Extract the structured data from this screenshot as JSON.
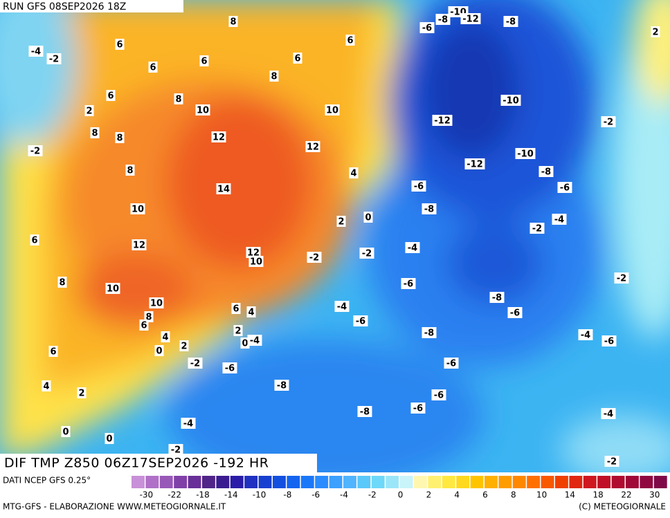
{
  "header": {
    "run": "RUN GFS 08SEP2026 18Z"
  },
  "map": {
    "title": "DIF TMP Z850 06Z17SEP2026 -192 HR",
    "contour_labels": [
      8,
      6,
      -4,
      -2,
      6,
      6,
      6,
      6,
      8,
      6,
      8,
      10,
      10,
      2,
      8,
      8,
      12,
      12,
      -2,
      8,
      4,
      14,
      10,
      2,
      0,
      6,
      12,
      12,
      10,
      -2,
      -2,
      8,
      10,
      10,
      6,
      4,
      8,
      6,
      4,
      2,
      2,
      0,
      -4,
      0,
      6,
      -2,
      -6,
      4,
      2,
      -8,
      -4,
      0,
      0,
      -2,
      -10,
      -8,
      -12,
      -8,
      -6,
      2,
      -10,
      -12,
      -2,
      -10,
      -12,
      -8,
      -6,
      -6,
      -8,
      -4,
      -2,
      -4,
      -2,
      -6,
      -8,
      -4,
      -6,
      -6,
      -8,
      -4,
      -6,
      -6,
      -6,
      -6,
      -8,
      -4,
      -2
    ]
  },
  "colorbar": {
    "ticks": [
      -30,
      -22,
      -18,
      -14,
      -10,
      -8,
      -6,
      -4,
      -2,
      0,
      2,
      4,
      6,
      8,
      10,
      14,
      18,
      22,
      30
    ]
  },
  "footer": {
    "source": "DATI NCEP GFS 0.25°",
    "credit": "MTG-GFS - ELABORAZIONE WWW.METEOGIORNALE.IT",
    "copyright": "(C) METEOGIORNALE"
  }
}
